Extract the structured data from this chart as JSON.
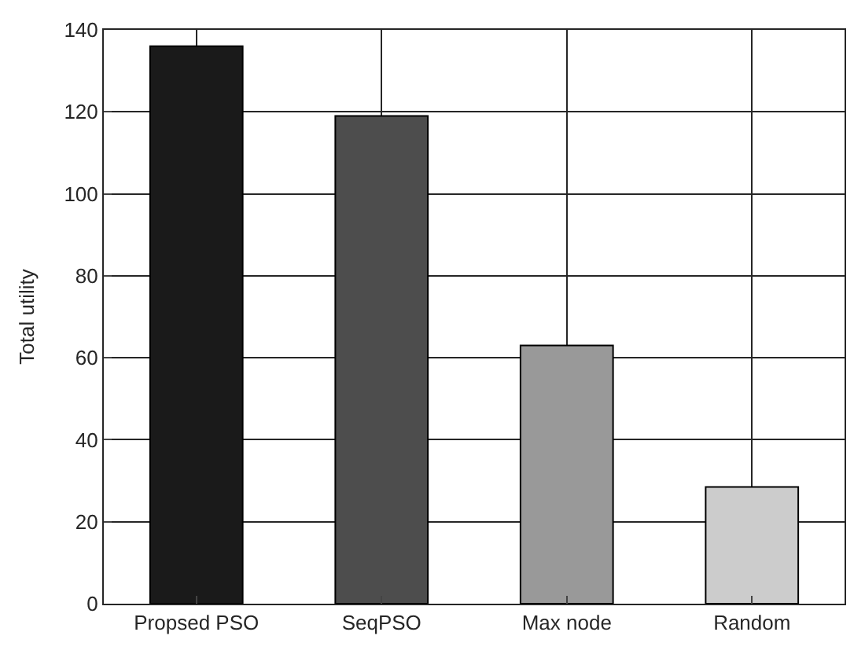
{
  "chart_data": {
    "type": "bar",
    "ylabel": "Total utility",
    "categories": [
      "Propsed PSO",
      "SeqPSO",
      "Max node",
      "Random"
    ],
    "values": [
      136,
      119,
      63,
      28.5
    ],
    "colors": [
      "#1a1a1a",
      "#4d4d4d",
      "#999999",
      "#cccccc"
    ],
    "ylim": [
      0,
      140
    ],
    "yticks": [
      0,
      20,
      40,
      60,
      80,
      100,
      120,
      140
    ],
    "grid": true
  }
}
